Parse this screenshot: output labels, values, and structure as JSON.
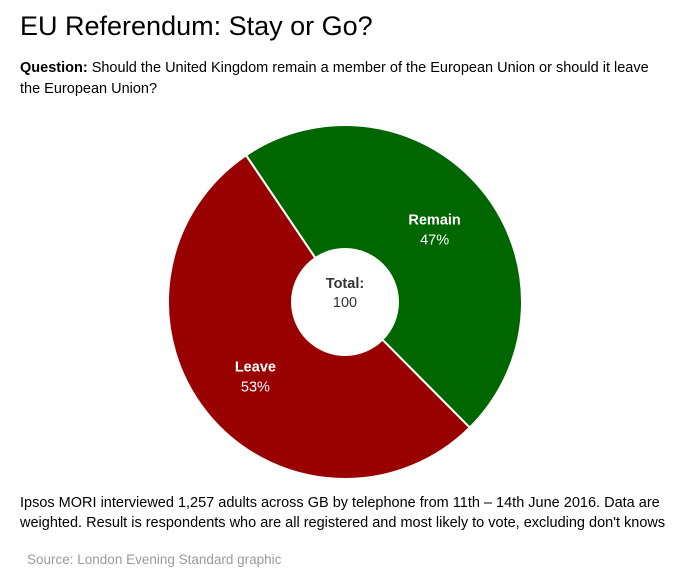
{
  "header": {
    "title": "EU Referendum: Stay or Go?",
    "question_label": "Question:",
    "question_text": " Should the United Kingdom remain a member of the European Union or should it leave the European Union?"
  },
  "chart_data": {
    "type": "pie",
    "style": "donut",
    "categories": [
      "Remain",
      "Leave"
    ],
    "values": [
      47,
      53
    ],
    "value_labels": [
      "47%",
      "53%"
    ],
    "colors": [
      "#006600",
      "#990000"
    ],
    "center_label": "Total:",
    "center_value": "100",
    "legend": "none"
  },
  "footer": {
    "note": "Ipsos MORI interviewed 1,257 adults across GB by telephone from 11th – 14th June 2016. Data are weighted. Result is respondents who are all registered and most likely to vote, excluding don't knows",
    "source": "Source: London Evening Standard graphic"
  }
}
